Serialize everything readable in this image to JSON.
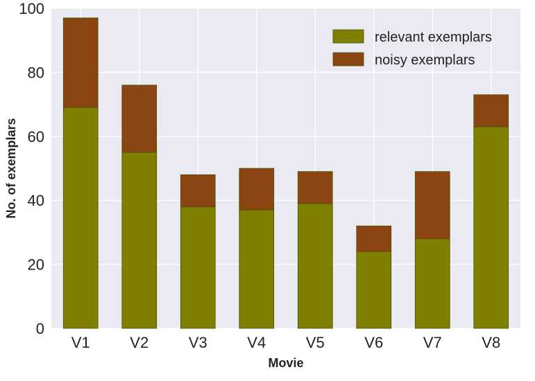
{
  "colors": {
    "plot_bg": "#EAEAF2",
    "grid": "#FFFFFF",
    "relevant": "#808000",
    "noisy": "#8B4513",
    "bar_edge": "#4d4d00"
  },
  "chart_data": {
    "type": "bar",
    "stacked": true,
    "xlabel": "Movie",
    "ylabel": "No. of exemplars",
    "ylim": [
      0,
      100
    ],
    "yticks": [
      0,
      20,
      40,
      60,
      80,
      100
    ],
    "grid": true,
    "legend_position": "top-right",
    "categories": [
      "V1",
      "V2",
      "V3",
      "V4",
      "V5",
      "V6",
      "V7",
      "V8"
    ],
    "series": [
      {
        "name": "relevant exemplars",
        "values": [
          69,
          55,
          38,
          37,
          39,
          24,
          28,
          63
        ]
      },
      {
        "name": "noisy exemplars",
        "values": [
          28,
          21,
          10,
          13,
          10,
          8,
          21,
          10
        ]
      }
    ]
  }
}
